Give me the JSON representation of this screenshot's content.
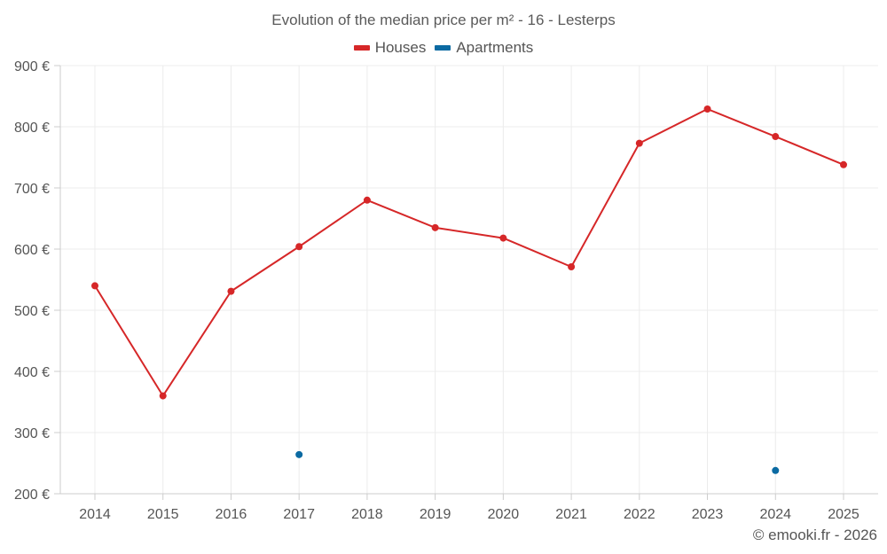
{
  "chart_data": {
    "type": "line",
    "title": "Evolution of the median price per m² - 16 - Lesterps",
    "categories": [
      "2014",
      "2015",
      "2016",
      "2017",
      "2018",
      "2019",
      "2020",
      "2021",
      "2022",
      "2023",
      "2024",
      "2025"
    ],
    "series": [
      {
        "name": "Houses",
        "color": "#d62728",
        "values": [
          540,
          360,
          531,
          604,
          680,
          635,
          618,
          571,
          773,
          829,
          784,
          738
        ]
      },
      {
        "name": "Apartments",
        "color": "#0b6aa2",
        "values": [
          null,
          null,
          null,
          264,
          null,
          null,
          null,
          null,
          null,
          null,
          238,
          null
        ]
      }
    ],
    "ylim": [
      200,
      900
    ],
    "yticks": [
      200,
      300,
      400,
      500,
      600,
      700,
      800,
      900
    ],
    "ytick_suffix": " €",
    "xlabel": "",
    "ylabel": "",
    "grid": true,
    "legend_position": "top-center"
  },
  "copyright": "© emooki.fr - 2026"
}
